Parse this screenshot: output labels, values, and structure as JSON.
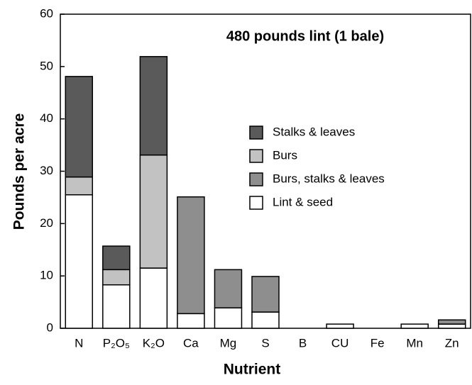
{
  "chart_data": {
    "type": "stacked-bar",
    "title": "480 pounds lint (1 bale)",
    "x_label": "Nutrient",
    "y_label": "Pounds per acre",
    "categories": [
      "N",
      "P₂O₅",
      "K₂O",
      "Ca",
      "Mg",
      "S",
      "B",
      "CU",
      "Fe",
      "Mn",
      "Zn"
    ],
    "series": [
      {
        "name": "Stalks & leaves",
        "color": "#5a5a5a",
        "values": [
          19.2,
          4.5,
          18.8,
          null,
          null,
          null,
          null,
          null,
          null,
          null,
          null
        ]
      },
      {
        "name": "Burs",
        "color": "#c2c2c2",
        "values": [
          3.4,
          2.9,
          21.6,
          null,
          null,
          null,
          null,
          null,
          null,
          null,
          null
        ]
      },
      {
        "name": "Burs, stalks & leaves",
        "color": "#8e8e8e",
        "values": [
          null,
          null,
          null,
          22.3,
          7.3,
          6.8,
          null,
          null,
          null,
          null,
          0.8
        ]
      },
      {
        "name": "Lint & seed",
        "color": "#ffffff",
        "values": [
          25.5,
          8.3,
          11.5,
          2.8,
          3.9,
          3.1,
          null,
          0.8,
          null,
          0.8,
          0.8
        ]
      }
    ],
    "ylim": [
      0,
      60
    ],
    "yticks": [
      0,
      10,
      20,
      30,
      40,
      50,
      60
    ],
    "grid": false
  }
}
